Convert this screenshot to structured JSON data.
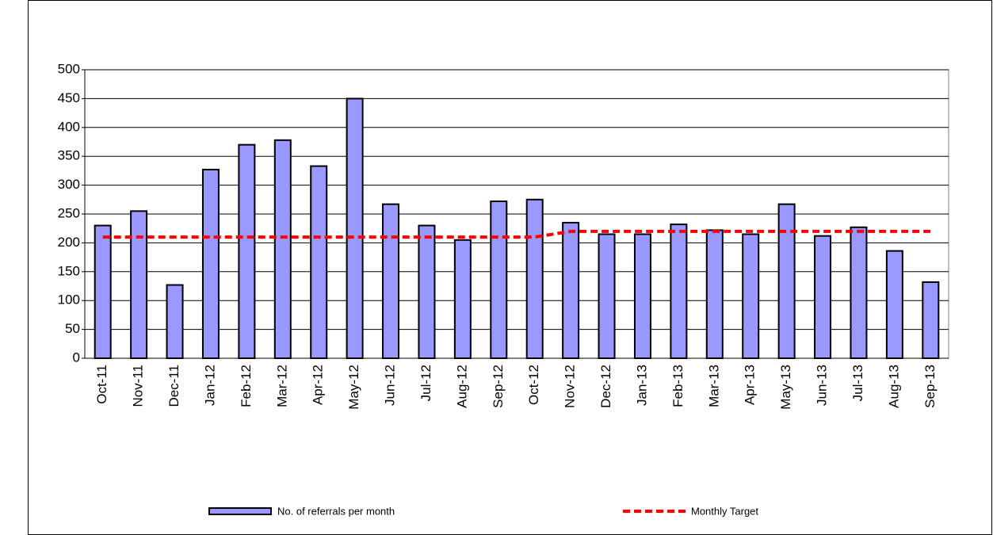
{
  "chart_data": {
    "type": "bar",
    "categories": [
      "Oct-11",
      "Nov-11",
      "Dec-11",
      "Jan-12",
      "Feb-12",
      "Mar-12",
      "Apr-12",
      "May-12",
      "Jun-12",
      "Jul-12",
      "Aug-12",
      "Sep-12",
      "Oct-12",
      "Nov-12",
      "Dec-12",
      "Jan-13",
      "Feb-13",
      "Mar-13",
      "Apr-13",
      "May-13",
      "Jun-13",
      "Jul-13",
      "Aug-13",
      "Sep-13"
    ],
    "series": [
      {
        "name": "No. of referrals per month",
        "type": "bar",
        "color": "#9999ff",
        "values": [
          230,
          255,
          127,
          327,
          370,
          378,
          333,
          450,
          267,
          230,
          205,
          272,
          275,
          235,
          215,
          215,
          232,
          222,
          215,
          267,
          212,
          227,
          186,
          132
        ]
      },
      {
        "name": "Monthly Target",
        "type": "line",
        "color": "#ff0000",
        "values": [
          210,
          210,
          210,
          210,
          210,
          210,
          210,
          210,
          210,
          210,
          210,
          210,
          210,
          220,
          220,
          220,
          220,
          220,
          220,
          220,
          220,
          220,
          220,
          220
        ]
      }
    ],
    "ylim": [
      0,
      500
    ],
    "yticks": [
      0,
      50,
      100,
      150,
      200,
      250,
      300,
      350,
      400,
      450,
      500
    ],
    "grid": true
  }
}
